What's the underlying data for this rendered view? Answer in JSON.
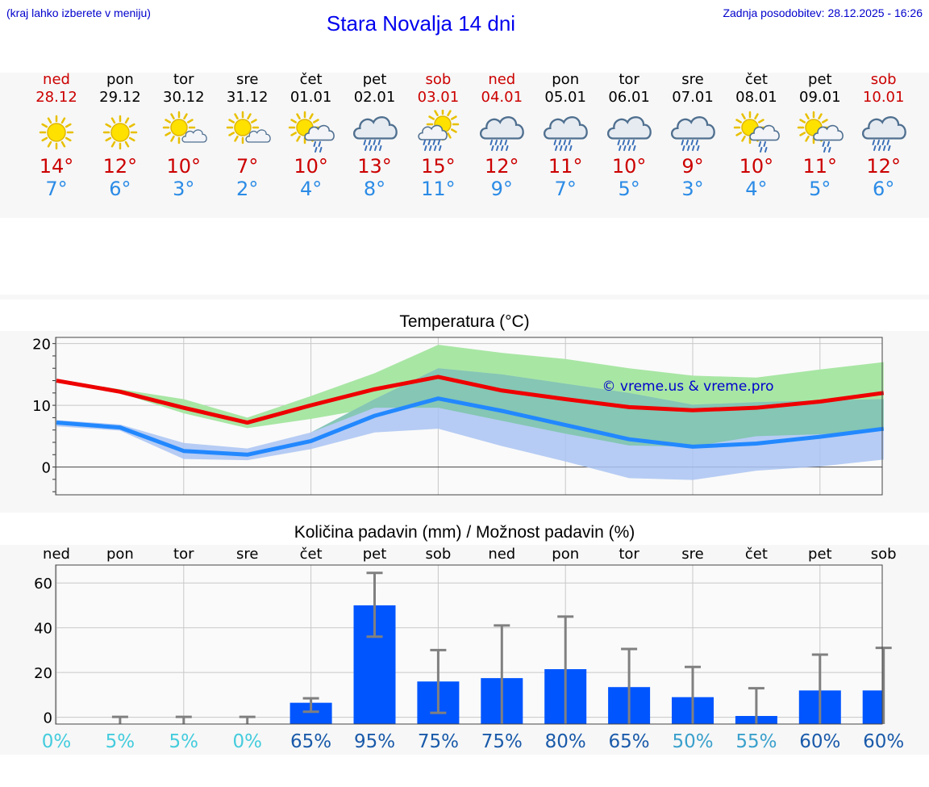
{
  "header": {
    "location_hint": "(kraj lahko izberete v meniju)",
    "title": "Stara Novalja 14 dni",
    "updated": "Zadnja posodobitev: 28.12.2025 - 16:26"
  },
  "days": [
    {
      "name": "ned",
      "date": "28.12",
      "weekend": true,
      "icon": "sun-icon",
      "max": "14°",
      "min": "7°"
    },
    {
      "name": "pon",
      "date": "29.12",
      "weekend": false,
      "icon": "sun-icon",
      "max": "12°",
      "min": "6°"
    },
    {
      "name": "tor",
      "date": "30.12",
      "weekend": false,
      "icon": "sun-cloud-icon",
      "max": "10°",
      "min": "3°"
    },
    {
      "name": "sre",
      "date": "31.12",
      "weekend": false,
      "icon": "sun-cloud-icon",
      "max": "7°",
      "min": "2°"
    },
    {
      "name": "čet",
      "date": "01.01",
      "weekend": false,
      "icon": "sun-cloud-light-rain-icon",
      "max": "10°",
      "min": "4°"
    },
    {
      "name": "pet",
      "date": "02.01",
      "weekend": false,
      "icon": "cloud-rain-icon",
      "max": "13°",
      "min": "8°"
    },
    {
      "name": "sob",
      "date": "03.01",
      "weekend": true,
      "icon": "sun-cloud-rain-icon",
      "max": "15°",
      "min": "11°"
    },
    {
      "name": "ned",
      "date": "04.01",
      "weekend": true,
      "icon": "cloud-rain-icon",
      "max": "12°",
      "min": "9°"
    },
    {
      "name": "pon",
      "date": "05.01",
      "weekend": false,
      "icon": "cloud-rain-icon",
      "max": "11°",
      "min": "7°"
    },
    {
      "name": "tor",
      "date": "06.01",
      "weekend": false,
      "icon": "cloud-rain-icon",
      "max": "10°",
      "min": "5°"
    },
    {
      "name": "sre",
      "date": "07.01",
      "weekend": false,
      "icon": "cloud-rain-icon",
      "max": "9°",
      "min": "3°"
    },
    {
      "name": "čet",
      "date": "08.01",
      "weekend": false,
      "icon": "sun-cloud-light-rain-icon",
      "max": "10°",
      "min": "4°"
    },
    {
      "name": "pet",
      "date": "09.01",
      "weekend": false,
      "icon": "sun-cloud-light-rain-icon",
      "max": "11°",
      "min": "5°"
    },
    {
      "name": "sob",
      "date": "10.01",
      "weekend": true,
      "icon": "cloud-rain-icon",
      "max": "12°",
      "min": "6°"
    }
  ],
  "colors": {
    "max_line": "#ee0000",
    "min_line": "#2288ff",
    "max_band": "#a8e6a4",
    "min_band": "#a9c3f2",
    "overlap_band": "#7cc6a8",
    "bar": "#0055ff",
    "errorbar": "#808080",
    "weekend": "#cc0000",
    "temp_min_text": "#2b8be6",
    "chance_low": "#44ccdd",
    "chance_high": "#1a5aaa"
  },
  "chart_data": [
    {
      "type": "line",
      "title": "Temperatura (°C)",
      "watermark": "© vreme.us & vreme.pro",
      "ylim": [
        -4.5,
        21
      ],
      "yticks": [
        0,
        10,
        20
      ],
      "grid": true,
      "x": [
        "28.12",
        "29.12",
        "30.12",
        "31.12",
        "01.01",
        "02.01",
        "03.01",
        "04.01",
        "05.01",
        "06.01",
        "07.01",
        "08.01",
        "09.01",
        "10.01"
      ],
      "series": [
        {
          "name": "max",
          "values": [
            14,
            12.2,
            9.6,
            7.2,
            10,
            12.6,
            14.6,
            12.4,
            11,
            9.7,
            9.2,
            9.6,
            10.6,
            12
          ],
          "band_high": [
            14.2,
            12.6,
            11,
            8,
            11.5,
            15.2,
            19.8,
            18.5,
            17.5,
            16,
            14.8,
            14.5,
            15.8,
            17
          ],
          "band_low": [
            13.8,
            12,
            8.7,
            6.3,
            7.8,
            9.6,
            9.6,
            7.5,
            5.4,
            3.5,
            3.3,
            5,
            5.3,
            6
          ]
        },
        {
          "name": "min",
          "values": [
            7.2,
            6.4,
            2.6,
            2,
            4.2,
            8.3,
            11.1,
            9.1,
            6.8,
            4.5,
            3.3,
            3.8,
            4.9,
            6.2
          ],
          "band_high": [
            7.6,
            6.9,
            3.9,
            3,
            5.6,
            11,
            16,
            15,
            13.5,
            12,
            10.1,
            10.5,
            10.8,
            11
          ],
          "band_low": [
            6.6,
            5.9,
            1.3,
            1.1,
            2.9,
            5.6,
            6.2,
            3.4,
            0.9,
            -1.8,
            -2.1,
            -0.6,
            0.1,
            1.2
          ]
        }
      ]
    },
    {
      "type": "bar",
      "title": "Količina padavin (mm) / Možnost padavin (%)",
      "categories": [
        "ned",
        "pon",
        "tor",
        "sre",
        "čet",
        "pet",
        "sob",
        "ned",
        "pon",
        "tor",
        "sre",
        "čet",
        "pet",
        "sob"
      ],
      "ylim": [
        -3,
        68
      ],
      "yticks": [
        0,
        20,
        40,
        60
      ],
      "grid": true,
      "values": [
        0,
        0,
        0,
        0,
        6.5,
        50,
        16,
        17.5,
        21.5,
        13.5,
        9,
        0.6,
        12,
        12
      ],
      "error_low": [
        0,
        0,
        0,
        0,
        2.5,
        36,
        2,
        0,
        0,
        0,
        0,
        0,
        0,
        0
      ],
      "error_high": [
        0,
        0.2,
        0.2,
        0.2,
        8.5,
        64.5,
        30,
        41,
        45,
        30.5,
        22.5,
        13,
        28,
        31
      ],
      "chance": [
        "0%",
        "5%",
        "5%",
        "0%",
        "65%",
        "95%",
        "75%",
        "75%",
        "80%",
        "65%",
        "50%",
        "55%",
        "60%",
        "60%"
      ]
    }
  ]
}
